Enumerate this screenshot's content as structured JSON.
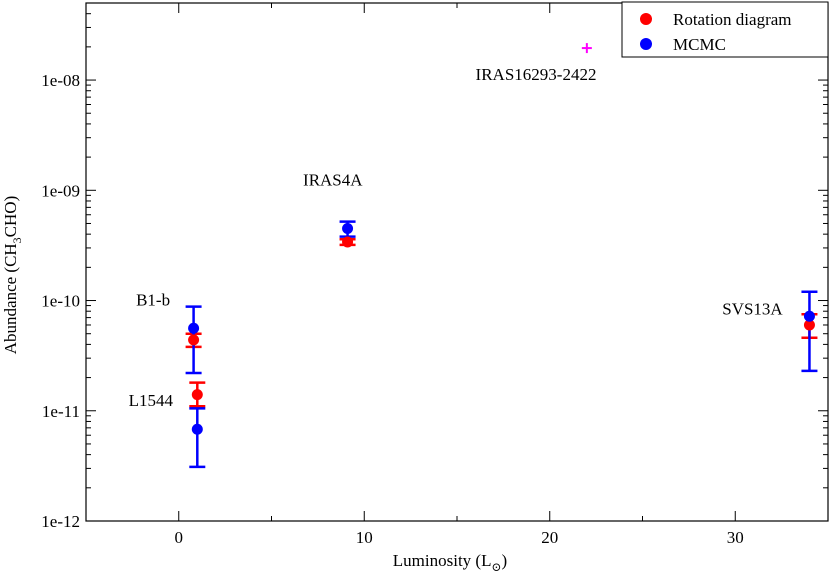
{
  "chart_data": {
    "type": "scatter",
    "title": "",
    "xlabel": {
      "main": "Luminosity (L",
      "sub": "⊙",
      "close": ")"
    },
    "ylabel": {
      "main": "Abundance (CH",
      "sub": "3",
      "rest": "CHO)"
    },
    "xlim": [
      -5,
      35
    ],
    "ylim": [
      1e-12,
      5e-08
    ],
    "yscale": "log",
    "x_ticks": [
      0,
      10,
      20,
      30
    ],
    "x_tick_labels": [
      "0",
      "10",
      "20",
      "30"
    ],
    "y_ticks": [
      1e-12,
      1e-11,
      1e-10,
      1e-09,
      1e-08
    ],
    "y_tick_labels": [
      "1e-12",
      "1e-11",
      "1e-10",
      "1e-09",
      "1e-08"
    ],
    "grid": false,
    "legend_position": "top-right",
    "series": [
      {
        "name": "Rotation diagram",
        "color": "#ff0000",
        "points": [
          {
            "x": 0.8,
            "y": 4.4e-11,
            "err_low": 3.8e-11,
            "err_high": 5e-11
          },
          {
            "x": 1.0,
            "y": 1.4e-11,
            "err_low": 1.1e-11,
            "err_high": 1.8e-11
          },
          {
            "x": 9.1,
            "y": 3.4e-10,
            "err_low": 3.2e-10,
            "err_high": 3.6e-10
          },
          {
            "x": 34.0,
            "y": 6e-11,
            "err_low": 4.6e-11,
            "err_high": 7.5e-11
          }
        ]
      },
      {
        "name": "MCMC",
        "color": "#0000ff",
        "points": [
          {
            "x": 0.8,
            "y": 5.6e-11,
            "err_low": 2.2e-11,
            "err_high": 8.8e-11
          },
          {
            "x": 1.0,
            "y": 6.8e-12,
            "err_low": 3.1e-12,
            "err_high": 1.05e-11
          },
          {
            "x": 9.1,
            "y": 4.5e-10,
            "err_low": 3.8e-10,
            "err_high": 5.2e-10
          },
          {
            "x": 34.0,
            "y": 7.2e-11,
            "err_low": 2.3e-11,
            "err_high": 1.2e-10
          }
        ]
      }
    ],
    "extra_points": [
      {
        "x": 22.0,
        "y": 1.95e-08,
        "color": "#ff00ff",
        "marker": "plus"
      }
    ],
    "annotations": [
      {
        "text": "IRAS16293-2422",
        "x": 16.0,
        "y": 1e-08
      },
      {
        "text": "IRAS4A",
        "x": 6.7,
        "y": 1.1e-09
      },
      {
        "text": "B1-b",
        "x": -2.3,
        "y": 9e-11
      },
      {
        "text": "L1544",
        "x": -2.7,
        "y": 1.1e-11
      },
      {
        "text": "SVS13A",
        "x": 29.3,
        "y": 7.5e-11
      }
    ]
  }
}
